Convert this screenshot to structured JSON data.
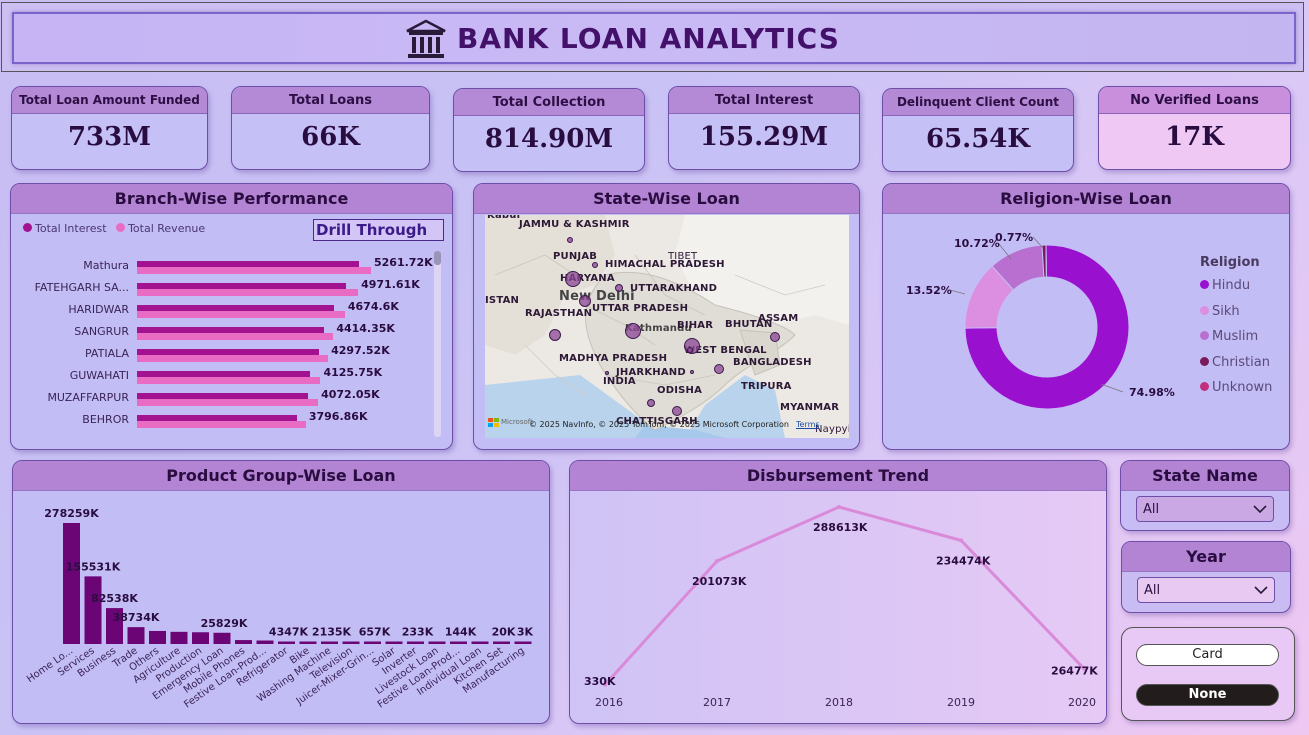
{
  "header": {
    "title": "BANK LOAN ANALYTICS",
    "icon": "bank-icon"
  },
  "kpis": [
    {
      "label": "Total Loan Amount Funded",
      "value": "733M"
    },
    {
      "label": "Total Loans",
      "value": "66K"
    },
    {
      "label": "Total Collection",
      "value": "814.90M"
    },
    {
      "label": "Total Interest",
      "value": "155.29M"
    },
    {
      "label": "Delinquent Client Count",
      "value": "65.54K"
    },
    {
      "label": "No Verified Loans",
      "value": "17K"
    }
  ],
  "branch": {
    "title": "Branch-Wise Performance",
    "legend": [
      "Total Interest",
      "Total Revenue"
    ],
    "colors": {
      "interest": "#a3128f",
      "revenue": "#e86cc3"
    },
    "drill_label": "Drill Through",
    "rows": [
      {
        "name": "Mathura",
        "label": "5261.72K",
        "interest": 5000,
        "revenue": 5261.72
      },
      {
        "name": "FATEHGARH SA...",
        "label": "4971.61K",
        "interest": 4700,
        "revenue": 4971.61
      },
      {
        "name": "HARIDWAR",
        "label": "4674.6K",
        "interest": 4430,
        "revenue": 4674.6
      },
      {
        "name": "SANGRUR",
        "label": "4414.35K",
        "interest": 4200,
        "revenue": 4414.35
      },
      {
        "name": "PATIALA",
        "label": "4297.52K",
        "interest": 4090,
        "revenue": 4297.52
      },
      {
        "name": "GUWAHATI",
        "label": "4125.75K",
        "interest": 3900,
        "revenue": 4125.75
      },
      {
        "name": "MUZAFFARPUR",
        "label": "4072.05K",
        "interest": 3850,
        "revenue": 4072.05
      },
      {
        "name": "BEHROR",
        "label": "3796.86K",
        "interest": 3600,
        "revenue": 3796.86
      }
    ]
  },
  "state_map": {
    "title": "State-Wise Loan",
    "labels": [
      "Kabul",
      "JAMMU & KASHMIR",
      "PUNJAB",
      "HIMACHAL PRADESH",
      "TIBET",
      "HARYANA",
      "New Delhi",
      "UTTARAKHAND",
      "ISTAN",
      "UTTAR PRADESH",
      "RAJASTHAN",
      "Kathmandu",
      "BIHAR",
      "BHUTAN",
      "ASSAM",
      "WEST BENGAL",
      "MADHYA PRADESH",
      "BANGLADESH",
      "JHARKHAND",
      "INDIA",
      "TRIPURA",
      "ODISHA",
      "MYANMAR",
      "CHATTISGARH",
      "Naypyitaw"
    ],
    "copyright": "© 2025 NavInfo, © 2025 TomTom, © 2025 Microsoft Corporation",
    "terms": "Terms",
    "brand": "Microsoft"
  },
  "religion": {
    "title": "Religion-Wise Loan",
    "legend_title": "Religion",
    "slices": [
      {
        "name": "Hindu",
        "value": 74.98,
        "label": "74.98%",
        "color": "#9a10cf"
      },
      {
        "name": "Sikh",
        "value": 13.52,
        "label": "13.52%",
        "color": "#dc8ee0"
      },
      {
        "name": "Muslim",
        "value": 10.72,
        "label": "10.72%",
        "color": "#b86fcf"
      },
      {
        "name": "Christian",
        "value": 0.77,
        "label": "0.77%",
        "color": "#7a1a5a"
      },
      {
        "name": "Unknown",
        "value": 0.01,
        "label": "",
        "color": "#c0307f"
      }
    ]
  },
  "product": {
    "title": "Product Group-Wise Loan",
    "color": "#6b0575",
    "items": [
      {
        "name": "Home Lo...",
        "value": 278259,
        "label": "278259K"
      },
      {
        "name": "Services",
        "value": 155531,
        "label": "155531K"
      },
      {
        "name": "Business",
        "value": 82538,
        "label": "82538K"
      },
      {
        "name": "Trade",
        "value": 38734,
        "label": "38734K"
      },
      {
        "name": "Others",
        "value": 30000,
        "label": ""
      },
      {
        "name": "Agriculture",
        "value": 28000,
        "label": ""
      },
      {
        "name": "Production",
        "value": 27000,
        "label": ""
      },
      {
        "name": "Emergency Loan",
        "value": 25829,
        "label": "25829K"
      },
      {
        "name": "Mobile Phones",
        "value": 9000,
        "label": ""
      },
      {
        "name": "Festive Loan-Prod...",
        "value": 8000,
        "label": ""
      },
      {
        "name": "Refrigerator",
        "value": 4347,
        "label": "4347K"
      },
      {
        "name": "Bike",
        "value": 3200,
        "label": ""
      },
      {
        "name": "Washing Machine",
        "value": 2135,
        "label": "2135K"
      },
      {
        "name": "Television",
        "value": 1000,
        "label": ""
      },
      {
        "name": "Juicer-Mixer-Grin...",
        "value": 657,
        "label": "657K"
      },
      {
        "name": "Solar",
        "value": 400,
        "label": ""
      },
      {
        "name": "Inverter",
        "value": 233,
        "label": "233K"
      },
      {
        "name": "Livestock Loan",
        "value": 200,
        "label": ""
      },
      {
        "name": "Festive Loan-Prod...",
        "value": 144,
        "label": "144K"
      },
      {
        "name": "Individual Loan",
        "value": 60,
        "label": ""
      },
      {
        "name": "Kitchen Set",
        "value": 20,
        "label": "20K"
      },
      {
        "name": "Manufacturing",
        "value": 3,
        "label": "3K"
      }
    ]
  },
  "trend": {
    "title": "Disbursement Trend",
    "color": "#d98ad8",
    "points": [
      {
        "x": "2016",
        "value": 330,
        "label": "330K"
      },
      {
        "x": "2017",
        "value": 201073,
        "label": "201073K"
      },
      {
        "x": "2018",
        "value": 288613,
        "label": "288613K"
      },
      {
        "x": "2019",
        "value": 234474,
        "label": "234474K"
      },
      {
        "x": "2020",
        "value": 26477,
        "label": "26477K"
      }
    ]
  },
  "slicers": {
    "state": {
      "title": "State Name",
      "value": "All"
    },
    "year": {
      "title": "Year",
      "value": "All"
    }
  },
  "toggle": {
    "card_label": "Card",
    "none_label": "None"
  },
  "chart_data": [
    {
      "type": "bar",
      "title": "Branch-Wise Performance",
      "categories": [
        "Mathura",
        "FATEHGARH SA...",
        "HARIDWAR",
        "SANGRUR",
        "PATIALA",
        "GUWAHATI",
        "MUZAFFARPUR",
        "BEHROR"
      ],
      "series": [
        {
          "name": "Total Interest",
          "values": [
            5000,
            4700,
            4430,
            4200,
            4090,
            3900,
            3850,
            3600
          ]
        },
        {
          "name": "Total Revenue",
          "values": [
            5261.72,
            4971.61,
            4674.6,
            4414.35,
            4297.52,
            4125.75,
            4072.05,
            3796.86
          ]
        }
      ],
      "legend": "top-left"
    },
    {
      "type": "pie",
      "title": "Religion-Wise Loan",
      "categories": [
        "Hindu",
        "Sikh",
        "Muslim",
        "Christian",
        "Unknown"
      ],
      "values": [
        74.98,
        13.52,
        10.72,
        0.77,
        0.01
      ],
      "legend": "right"
    },
    {
      "type": "bar",
      "title": "Product Group-Wise Loan",
      "categories": [
        "Home Lo...",
        "Services",
        "Business",
        "Trade",
        "Others",
        "Agriculture",
        "Production",
        "Emergency Loan",
        "Mobile Phones",
        "Festive Loan-Prod...",
        "Refrigerator",
        "Bike",
        "Washing Machine",
        "Television",
        "Juicer-Mixer-Grin...",
        "Solar",
        "Inverter",
        "Livestock Loan",
        "Festive Loan-Prod...",
        "Individual Loan",
        "Kitchen Set",
        "Manufacturing"
      ],
      "values": [
        278259,
        155531,
        82538,
        38734,
        30000,
        28000,
        27000,
        25829,
        9000,
        8000,
        4347,
        3200,
        2135,
        1000,
        657,
        400,
        233,
        200,
        144,
        60,
        20,
        3
      ]
    },
    {
      "type": "line",
      "title": "Disbursement Trend",
      "x": [
        "2016",
        "2017",
        "2018",
        "2019",
        "2020"
      ],
      "values": [
        330,
        201073,
        288613,
        234474,
        26477
      ]
    }
  ]
}
